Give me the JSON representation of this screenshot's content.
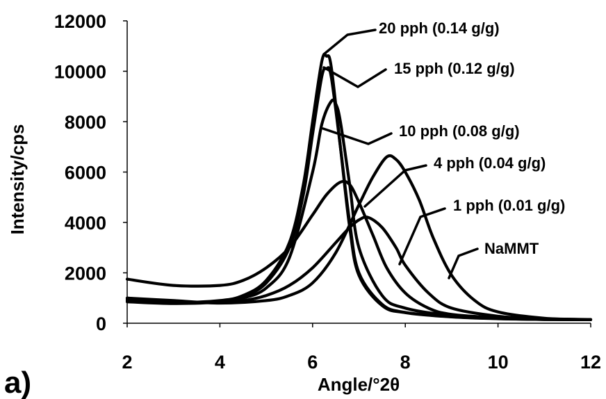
{
  "chart_data": {
    "type": "line",
    "panel_label": "a)",
    "xlabel": "Angle/°2θ",
    "ylabel": "Intensity/cps",
    "xlim": [
      2,
      12
    ],
    "ylim": [
      0,
      12000
    ],
    "xticks": [
      "2",
      "4",
      "6",
      "8",
      "10",
      "12"
    ],
    "yticks": [
      "0",
      "2000",
      "4000",
      "6000",
      "8000",
      "10000",
      "12000"
    ],
    "grid": false,
    "legend": "none",
    "series": [
      {
        "name": "20 pph (0.14 g/g)",
        "x": [
          2,
          3,
          4,
          4.5,
          5,
          5.5,
          5.8,
          6,
          6.2,
          6.3,
          6.4,
          6.6,
          6.8,
          7,
          7.5,
          8,
          9,
          10,
          11,
          12
        ],
        "y": [
          900,
          820,
          900,
          1100,
          1700,
          3200,
          5500,
          8000,
          10400,
          10600,
          10200,
          7000,
          3800,
          1900,
          700,
          420,
          250,
          180,
          150,
          140
        ]
      },
      {
        "name": "15 pph (0.12 g/g)",
        "x": [
          2,
          3,
          4,
          4.5,
          5,
          5.5,
          5.8,
          6,
          6.2,
          6.3,
          6.4,
          6.6,
          6.8,
          7,
          7.5,
          8,
          9,
          10,
          11,
          12
        ],
        "y": [
          850,
          780,
          850,
          1050,
          1600,
          3000,
          5100,
          7500,
          9800,
          10100,
          9800,
          7000,
          4000,
          2000,
          750,
          430,
          260,
          185,
          150,
          140
        ]
      },
      {
        "name": "10 pph (0.08 g/g)",
        "x": [
          2,
          3,
          4,
          4.5,
          5,
          5.5,
          6,
          6.2,
          6.4,
          6.5,
          6.6,
          6.8,
          7,
          7.5,
          8,
          9,
          10,
          11,
          12
        ],
        "y": [
          950,
          820,
          850,
          1000,
          1400,
          2600,
          6000,
          7900,
          8800,
          8700,
          8000,
          5500,
          3000,
          1100,
          600,
          300,
          200,
          160,
          140
        ]
      },
      {
        "name": "4 pph (0.04 g/g)",
        "x": [
          2,
          3,
          4,
          4.5,
          5,
          5.5,
          6,
          6.3,
          6.6,
          6.8,
          7,
          7.3,
          7.6,
          8,
          8.5,
          9,
          10,
          11,
          12
        ],
        "y": [
          1750,
          1500,
          1500,
          1700,
          2200,
          3000,
          4300,
          5100,
          5600,
          5500,
          4800,
          3500,
          2200,
          1200,
          600,
          350,
          220,
          170,
          140
        ]
      },
      {
        "name": "1 pph (0.01 g/g)",
        "x": [
          2,
          3,
          4,
          4.5,
          5,
          5.5,
          6,
          6.5,
          6.8,
          7,
          7.2,
          7.5,
          7.8,
          8,
          8.5,
          9,
          10,
          11,
          12
        ],
        "y": [
          1000,
          850,
          850,
          900,
          1100,
          1500,
          2200,
          3200,
          3800,
          4100,
          4200,
          3800,
          3000,
          2300,
          1200,
          600,
          280,
          180,
          140
        ]
      },
      {
        "name": "NaMMT",
        "x": [
          2,
          3,
          4,
          5,
          5.5,
          6,
          6.5,
          7,
          7.3,
          7.6,
          7.8,
          8,
          8.3,
          8.6,
          9,
          9.5,
          10,
          11,
          12
        ],
        "y": [
          1000,
          900,
          800,
          900,
          1100,
          1600,
          2800,
          4700,
          5800,
          6600,
          6500,
          6000,
          4900,
          3400,
          1900,
          900,
          450,
          200,
          150
        ]
      }
    ]
  }
}
